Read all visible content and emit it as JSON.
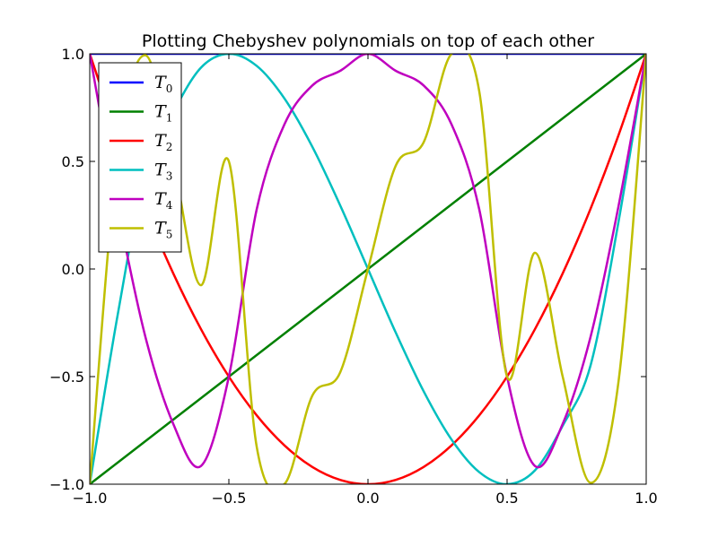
{
  "chart_data": {
    "type": "line",
    "title": "Plotting Chebyshev polynomials on top of each other",
    "xlabel": "",
    "ylabel": "",
    "xlim": [
      -1.0,
      1.0
    ],
    "ylim": [
      -1.0,
      1.0
    ],
    "x_ticks": [
      -1.0,
      -0.5,
      0.0,
      0.5,
      1.0
    ],
    "y_ticks": [
      -1.0,
      -0.5,
      0.0,
      0.5,
      1.0
    ],
    "x_tick_labels": [
      "−1.0",
      "−0.5",
      "0.0",
      "0.5",
      "1.0"
    ],
    "y_tick_labels": [
      "−1.0",
      "−0.5",
      "0.0",
      "0.5",
      "1.0"
    ],
    "grid": false,
    "legend_position": "top-left",
    "x": [
      -1.0,
      -0.9,
      -0.8,
      -0.7,
      -0.6,
      -0.5,
      -0.4,
      -0.3,
      -0.2,
      -0.1,
      0.0,
      0.1,
      0.2,
      0.3,
      0.4,
      0.5,
      0.6,
      0.7,
      0.8,
      0.9,
      1.0
    ],
    "series": [
      {
        "name": "T",
        "subscript": "0",
        "color": "#0000ff",
        "values": [
          1,
          1,
          1,
          1,
          1,
          1,
          1,
          1,
          1,
          1,
          1,
          1,
          1,
          1,
          1,
          1,
          1,
          1,
          1,
          1,
          1
        ]
      },
      {
        "name": "T",
        "subscript": "1",
        "color": "#008000",
        "values": [
          -1.0,
          -0.9,
          -0.8,
          -0.7,
          -0.6,
          -0.5,
          -0.4,
          -0.3,
          -0.2,
          -0.1,
          0.0,
          0.1,
          0.2,
          0.3,
          0.4,
          0.5,
          0.6,
          0.7,
          0.8,
          0.9,
          1.0
        ]
      },
      {
        "name": "T",
        "subscript": "2",
        "color": "#ff0000",
        "values": [
          1.0,
          0.62,
          0.28,
          -0.02,
          -0.28,
          -0.5,
          -0.68,
          -0.82,
          -0.92,
          -0.98,
          -1.0,
          -0.98,
          -0.92,
          -0.82,
          -0.68,
          -0.5,
          -0.28,
          -0.02,
          0.28,
          0.62,
          1.0
        ]
      },
      {
        "name": "T",
        "subscript": "3",
        "color": "#00bfbf",
        "values": [
          -1.0,
          -0.216,
          0.448,
          0.728,
          0.936,
          1.0,
          0.944,
          0.792,
          0.568,
          0.296,
          0.0,
          -0.296,
          -0.568,
          -0.792,
          -0.944,
          -1.0,
          -0.936,
          -0.728,
          -0.448,
          0.216,
          1.0
        ]
      },
      {
        "name": "T",
        "subscript": "4",
        "color": "#bf00bf",
        "values": [
          1.0,
          0.2888,
          -0.3152,
          -0.7192,
          -0.9152,
          -0.5,
          0.2768,
          0.6728,
          0.8528,
          0.9208,
          1.0,
          0.9208,
          0.8528,
          0.6728,
          0.2768,
          -0.5,
          -0.9152,
          -0.7192,
          -0.3152,
          0.2888,
          1.0
        ]
      },
      {
        "name": "T",
        "subscript": "5",
        "color": "#bfbf00",
        "values": [
          -1.0,
          0.5281,
          0.9933,
          0.5011,
          -0.0755,
          0.5,
          -0.8253,
          -0.9986,
          -0.5884,
          -0.4805,
          0.0,
          0.4805,
          0.5884,
          0.9986,
          0.8253,
          -0.5,
          0.0755,
          -0.5011,
          -0.9933,
          -0.5281,
          1.0
        ]
      }
    ]
  }
}
